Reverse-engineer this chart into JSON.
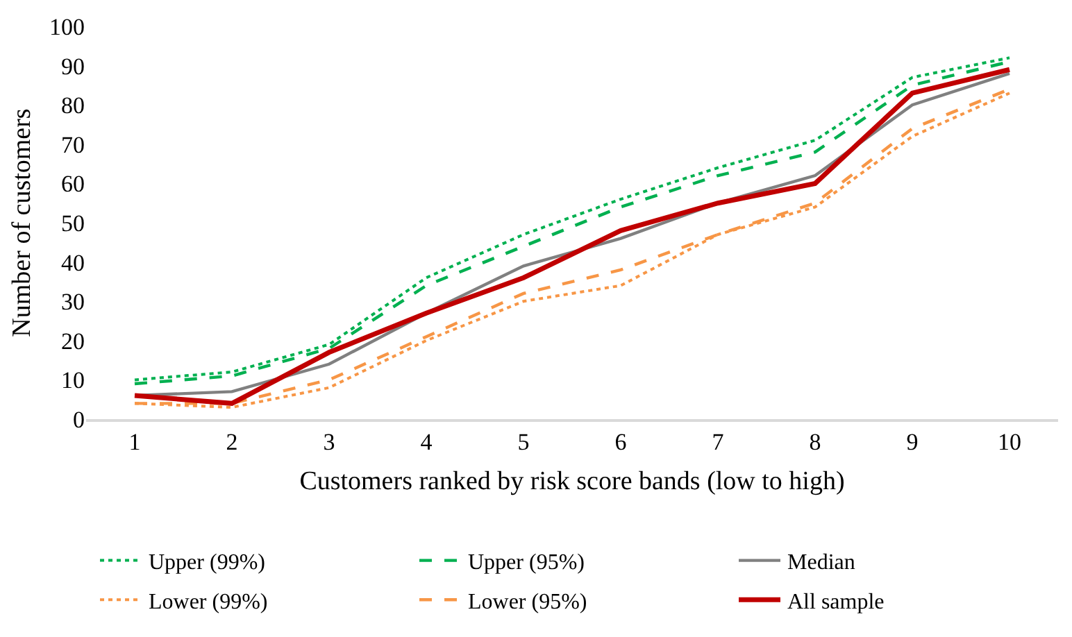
{
  "chart_data": {
    "type": "line",
    "xlabel": "Customers ranked by risk score bands (low to high)",
    "ylabel": "Number of customers",
    "categories": [
      "1",
      "2",
      "3",
      "4",
      "5",
      "6",
      "7",
      "8",
      "9",
      "10"
    ],
    "ylim": [
      0,
      100
    ],
    "yticks": [
      0,
      10,
      20,
      30,
      40,
      50,
      60,
      70,
      80,
      90,
      100
    ],
    "grid": false,
    "legend": "bottom",
    "marker": "none",
    "series": [
      {
        "name": "Upper (99%)",
        "color": "#00b050",
        "line_style": "dotted",
        "values": [
          10,
          12,
          19,
          36,
          47,
          56,
          64,
          71,
          87,
          92
        ]
      },
      {
        "name": "Upper (95%)",
        "color": "#00b050",
        "line_style": "dashed",
        "values": [
          9,
          11,
          18,
          34,
          44,
          54,
          62,
          68,
          85,
          91
        ]
      },
      {
        "name": "Median",
        "color": "#808080",
        "line_style": "solid",
        "values": [
          6,
          7,
          14,
          27,
          39,
          46,
          55,
          62,
          80,
          88
        ]
      },
      {
        "name": "Lower (99%)",
        "color": "#f79646",
        "line_style": "dotted",
        "values": [
          4,
          3,
          8,
          20,
          30,
          34,
          47,
          54,
          72,
          83
        ]
      },
      {
        "name": "Lower (95%)",
        "color": "#f79646",
        "line_style": "dashed",
        "values": [
          4,
          4,
          10,
          21,
          32,
          38,
          47,
          55,
          74,
          84
        ]
      },
      {
        "name": "All sample",
        "color": "#c00000",
        "line_style": "solid",
        "values": [
          6,
          4,
          17,
          27,
          36,
          48,
          55,
          60,
          83,
          89
        ]
      }
    ]
  }
}
